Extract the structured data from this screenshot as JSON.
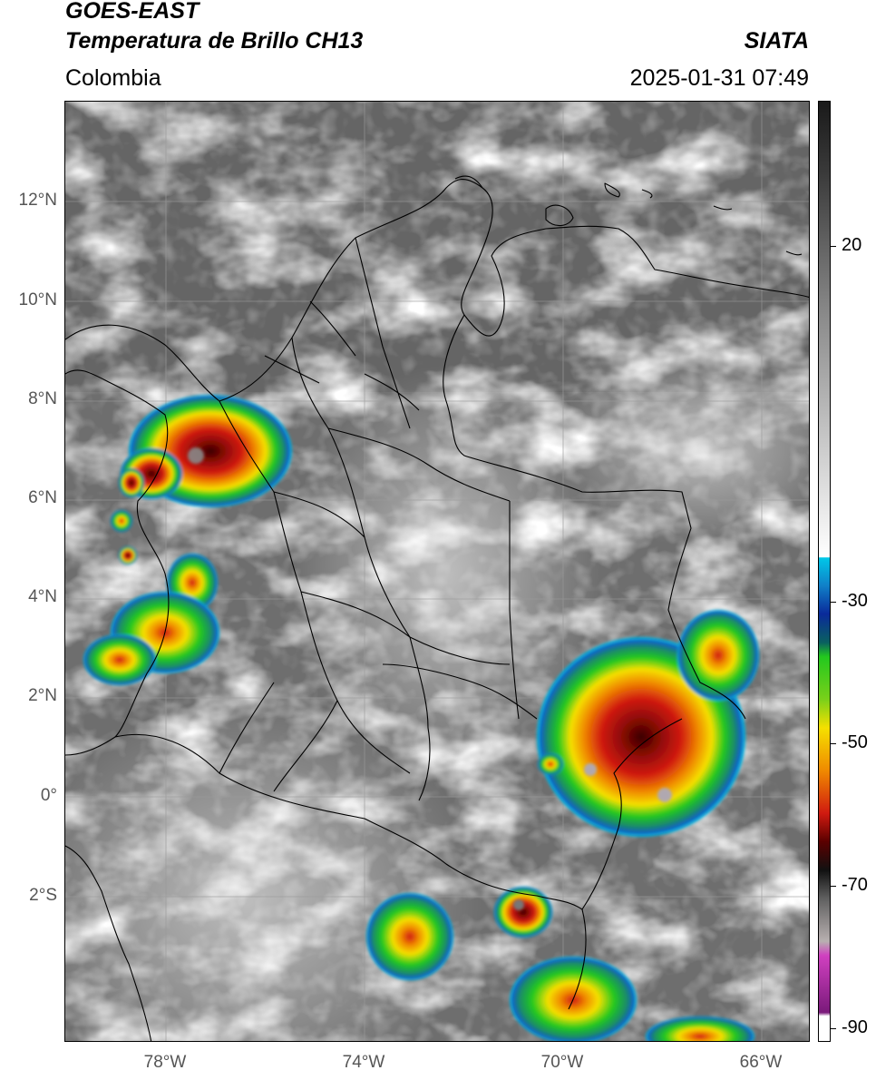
{
  "header": {
    "satellite": "GOES-EAST",
    "product": "Temperatura de Brillo CH13",
    "brand": "SIATA",
    "region": "Colombia",
    "timestamp": "2025-01-31 07:49"
  },
  "axes": {
    "latitude_labels": [
      "12°N",
      "10°N",
      "8°N",
      "6°N",
      "4°N",
      "2°N",
      "0°",
      "2°S"
    ],
    "longitude_labels": [
      "78°W",
      "74°W",
      "70°W",
      "66°W"
    ],
    "lat_range": [
      -4.9,
      14.0
    ],
    "lon_range": [
      -80.0,
      -65.0
    ]
  },
  "colorbar": {
    "tick_labels": [
      "20",
      "-30",
      "-50",
      "-70",
      "-90"
    ],
    "tick_values": [
      20,
      -30,
      -50,
      -70,
      -90
    ],
    "range": [
      40,
      -92
    ],
    "colors": {
      "warm": "#ffffff",
      "cold_gray": "#1a1a1a",
      "cyan": "#00c8e8",
      "blue": "#0a2a9a",
      "green": "#22c81e",
      "yellow": "#f5e000",
      "orange": "#f08a00",
      "red": "#d01a10",
      "dark_red": "#5a0000",
      "magenta": "#d040c0",
      "purple": "#7a1a7a"
    }
  },
  "map": {
    "background_color": "#6e6e6e",
    "border_color": "#000000",
    "grid_color": "#9a9a9a"
  }
}
